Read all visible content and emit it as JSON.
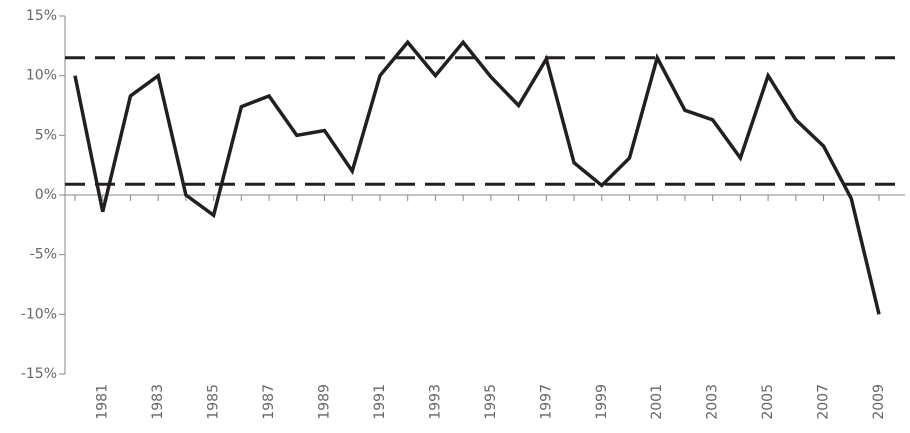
{
  "chart_data": {
    "type": "line",
    "categories": [
      null,
      "1981",
      null,
      "1983",
      null,
      "1985",
      null,
      "1987",
      null,
      "1989",
      null,
      "1991",
      null,
      "1993",
      null,
      "1995",
      null,
      "1997",
      null,
      "1999",
      null,
      "2001",
      null,
      "2003",
      null,
      "2005",
      null,
      "2007",
      null,
      "2009"
    ],
    "values": [
      10,
      -1.4,
      8.3,
      10,
      0,
      -1.7,
      7.4,
      8.3,
      5,
      5.4,
      2,
      10,
      12.8,
      10,
      12.8,
      9.9,
      7.5,
      11.4,
      2.7,
      0.8,
      3.1,
      11.5,
      7.1,
      6.3,
      3.1,
      10,
      6.3,
      4.1,
      -0.3,
      -10
    ],
    "color": "#231f20",
    "ylim": [
      -15,
      15
    ],
    "yticks": [
      {
        "value": -15,
        "label": "-15%"
      },
      {
        "value": -10,
        "label": "-10%"
      },
      {
        "value": -5,
        "label": "-5%"
      },
      {
        "value": 0,
        "label": "0%"
      },
      {
        "value": 5,
        "label": "5%"
      },
      {
        "value": 10,
        "label": "10%"
      },
      {
        "value": 15,
        "label": "15%"
      }
    ],
    "hlines": [
      11.5,
      0.9
    ]
  }
}
